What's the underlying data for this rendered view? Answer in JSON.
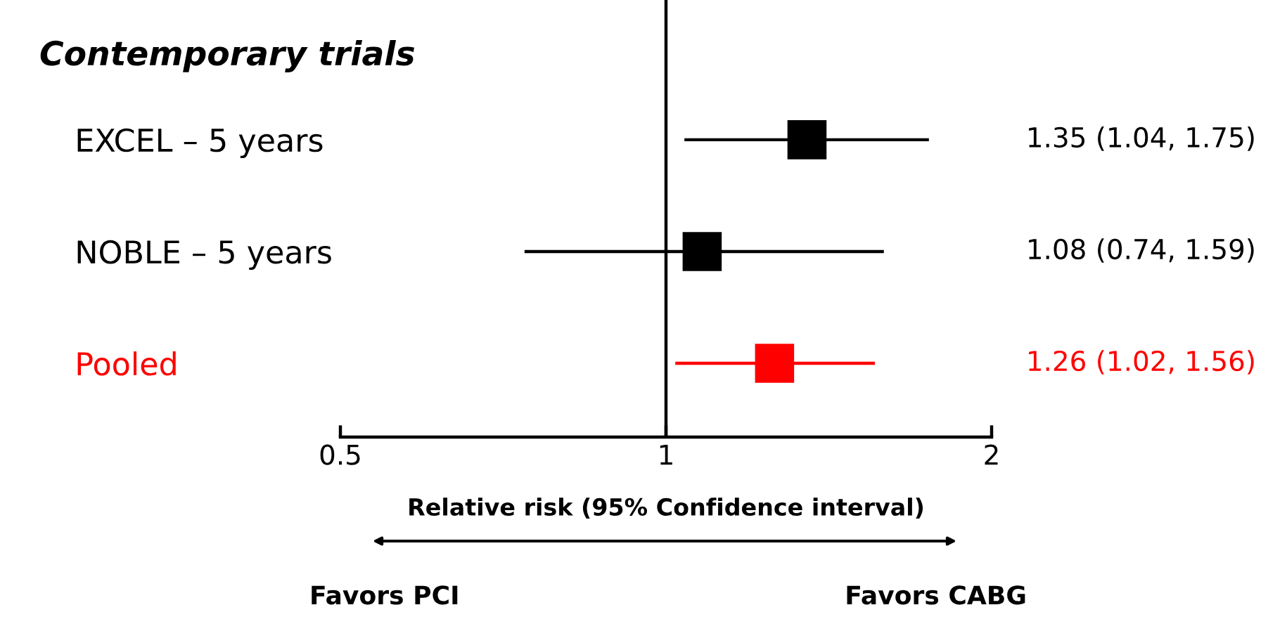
{
  "chart_data": {
    "type": "scatter",
    "orientation": "horizontal",
    "title": "Contemporary trials",
    "categories": [
      "EXCEL – 5 years",
      "NOBLE – 5 years",
      "Pooled"
    ],
    "values": [
      1.35,
      1.08,
      1.26
    ],
    "errors": [
      [
        1.04,
        1.75
      ],
      [
        0.74,
        1.59
      ],
      [
        1.02,
        1.56
      ]
    ],
    "colors": [
      "#000000",
      "#000000",
      "#ff0000"
    ],
    "value_labels": [
      "1.35 (1.04, 1.75)",
      "1.08 (0.74, 1.59)",
      "1.26 (1.02, 1.56)"
    ],
    "marker": "square",
    "log": "x",
    "xlim": [
      0.5,
      2
    ],
    "xticks": [
      0.5,
      1,
      2
    ],
    "ref_lines": [
      {
        "axis": "x",
        "value": 1,
        "color": "#000000"
      }
    ],
    "xlabel": "Relative risk (95% Confidence interval)",
    "annotations": [
      "Favors PCI",
      "Favors CABG"
    ],
    "grid": false,
    "legend": false
  }
}
